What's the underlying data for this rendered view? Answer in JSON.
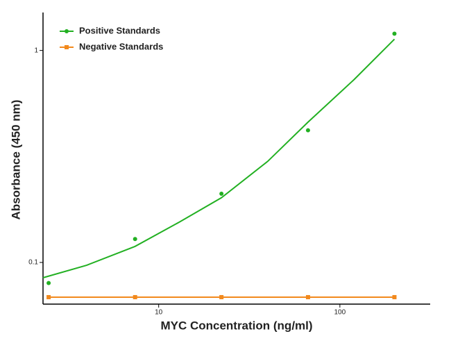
{
  "chart_data": {
    "type": "scatter",
    "x_label": "MYC Concentration (ng/ml)",
    "y_label": "Absorbance (450 nm)",
    "x_log": true,
    "y_log": true,
    "xlim": [
      2.3,
      315
    ],
    "ylim": [
      0.0636,
      1.51
    ],
    "xticks": [
      10,
      100
    ],
    "yticks": [
      0.1,
      1
    ],
    "legend": "top-left",
    "series": [
      {
        "name": "Positive Standards",
        "color": "#22b022",
        "marker": "circle",
        "x": [
          2.47,
          7.41,
          22.2,
          66.7,
          200
        ],
        "values": [
          0.08,
          0.129,
          0.211,
          0.42,
          1.2
        ],
        "fit": {
          "x": [
            2.3,
            4,
            7.4,
            13,
            22.2,
            40,
            66.7,
            120,
            200
          ],
          "values": [
            0.0847,
            0.097,
            0.119,
            0.155,
            0.202,
            0.3,
            0.459,
            0.73,
            1.13
          ]
        }
      },
      {
        "name": "Negative Standards",
        "color": "#f2891c",
        "marker": "square",
        "line": true,
        "x": [
          2.47,
          7.41,
          22.2,
          66.7,
          200
        ],
        "values": [
          0.0686,
          0.0686,
          0.0686,
          0.0686,
          0.0686
        ]
      }
    ]
  }
}
